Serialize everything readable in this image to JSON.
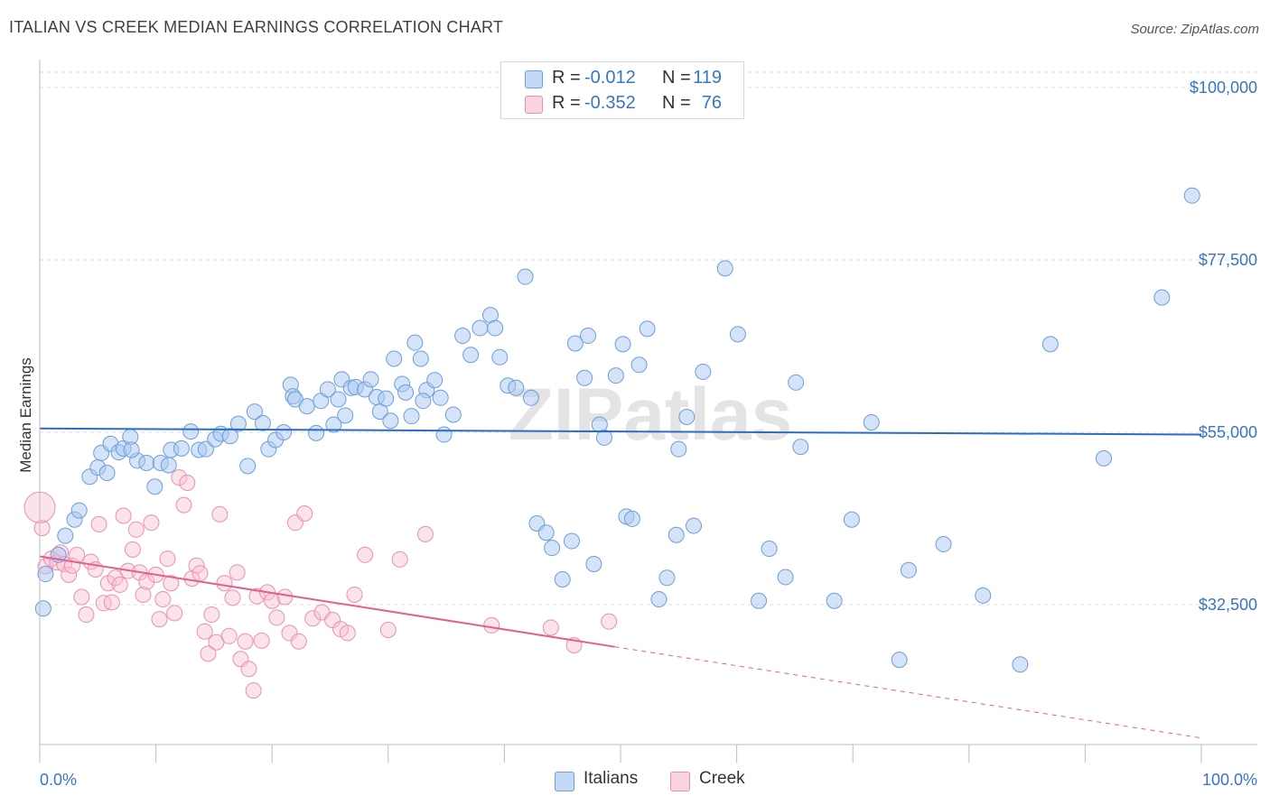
{
  "title": "ITALIAN VS CREEK MEDIAN EARNINGS CORRELATION CHART",
  "source": "Source: ZipAtlas.com",
  "watermark": "ZIPatlas",
  "legend": {
    "rows": [
      {
        "r_label": "R =",
        "r_value": "-0.012",
        "n_label": "N =",
        "n_value": "119",
        "color": "#6fa3e0"
      },
      {
        "r_label": "R =",
        "r_value": "-0.352",
        "n_label": "N =",
        "n_value": "76",
        "color": "#f092b3"
      }
    ]
  },
  "bottom_legend": {
    "italians": "Italians",
    "creek": "Creek"
  },
  "colors": {
    "blue_fill": "#a9c8ef",
    "blue_stroke": "#6c9fdc",
    "blue_line": "#2b6cc7",
    "pink_fill": "#f6c1d3",
    "pink_stroke": "#ec8fb1",
    "pink_line": "#e2608f",
    "grid": "#dcdcdc",
    "tick_text": "#3a74c4"
  },
  "chart_data": {
    "type": "scatter",
    "title": "ITALIAN VS CREEK MEDIAN EARNINGS CORRELATION CHART",
    "xlabel": "",
    "ylabel": "Median Earnings",
    "x_tick_labels": [
      "0.0%",
      "100.0%"
    ],
    "y_tick_labels": [
      "$32,500",
      "$55,000",
      "$77,500",
      "$100,000"
    ],
    "y_ticks": [
      32500,
      55000,
      77500,
      100000
    ],
    "xlim": [
      0,
      100
    ],
    "ylim": [
      12000,
      102000
    ],
    "grid": true,
    "legend_position": "top-center",
    "series": [
      {
        "name": "Italians",
        "r": -0.012,
        "n": 119,
        "trend": {
          "x0": 0,
          "y0": 55500,
          "x1": 100,
          "y1": 54700
        },
        "points": [
          [
            0.3,
            32000
          ],
          [
            0.5,
            36500
          ],
          [
            1.6,
            39000
          ],
          [
            2.2,
            41500
          ],
          [
            3.0,
            43600
          ],
          [
            3.4,
            44800
          ],
          [
            4.3,
            49200
          ],
          [
            5.0,
            50400
          ],
          [
            5.3,
            52300
          ],
          [
            5.8,
            49700
          ],
          [
            6.1,
            53500
          ],
          [
            6.8,
            52400
          ],
          [
            7.2,
            52900
          ],
          [
            7.8,
            54400
          ],
          [
            8.4,
            51300
          ],
          [
            9.2,
            51000
          ],
          [
            9.9,
            47900
          ],
          [
            10.4,
            51000
          ],
          [
            11.1,
            50700
          ],
          [
            11.3,
            52700
          ],
          [
            12.2,
            52900
          ],
          [
            13.0,
            55100
          ],
          [
            13.7,
            52700
          ],
          [
            14.3,
            52800
          ],
          [
            15.1,
            54100
          ],
          [
            15.6,
            54800
          ],
          [
            16.4,
            54500
          ],
          [
            17.1,
            56100
          ],
          [
            17.9,
            50600
          ],
          [
            18.5,
            57700
          ],
          [
            19.2,
            56200
          ],
          [
            19.7,
            52800
          ],
          [
            20.3,
            54000
          ],
          [
            21.0,
            55000
          ],
          [
            21.6,
            61200
          ],
          [
            21.8,
            59700
          ],
          [
            22.0,
            59300
          ],
          [
            23.0,
            58400
          ],
          [
            23.8,
            54900
          ],
          [
            24.2,
            59100
          ],
          [
            24.8,
            60600
          ],
          [
            25.3,
            56000
          ],
          [
            25.7,
            59300
          ],
          [
            26.0,
            61900
          ],
          [
            26.3,
            57200
          ],
          [
            26.8,
            60800
          ],
          [
            27.2,
            60900
          ],
          [
            28.0,
            60600
          ],
          [
            28.5,
            61900
          ],
          [
            29.0,
            59600
          ],
          [
            29.3,
            57700
          ],
          [
            29.8,
            59400
          ],
          [
            30.2,
            56500
          ],
          [
            30.5,
            64600
          ],
          [
            31.2,
            61300
          ],
          [
            31.5,
            60200
          ],
          [
            32.0,
            57100
          ],
          [
            32.3,
            66700
          ],
          [
            32.8,
            64600
          ],
          [
            33.3,
            60500
          ],
          [
            34.0,
            61800
          ],
          [
            34.5,
            59500
          ],
          [
            34.8,
            54700
          ],
          [
            35.6,
            57300
          ],
          [
            36.4,
            67600
          ],
          [
            37.1,
            65100
          ],
          [
            37.9,
            68600
          ],
          [
            38.8,
            70300
          ],
          [
            39.2,
            68600
          ],
          [
            39.6,
            64800
          ],
          [
            40.3,
            61100
          ],
          [
            41.0,
            60800
          ],
          [
            41.8,
            75300
          ],
          [
            42.3,
            59500
          ],
          [
            42.8,
            43100
          ],
          [
            43.6,
            41900
          ],
          [
            44.1,
            39900
          ],
          [
            45.0,
            35800
          ],
          [
            45.8,
            40800
          ],
          [
            46.1,
            66600
          ],
          [
            46.9,
            62100
          ],
          [
            47.2,
            67600
          ],
          [
            47.7,
            37800
          ],
          [
            48.2,
            56000
          ],
          [
            48.6,
            54300
          ],
          [
            49.6,
            62400
          ],
          [
            50.2,
            66500
          ],
          [
            50.5,
            44000
          ],
          [
            51.0,
            43700
          ],
          [
            51.6,
            63800
          ],
          [
            52.3,
            68500
          ],
          [
            53.3,
            33200
          ],
          [
            54.0,
            36000
          ],
          [
            54.8,
            41600
          ],
          [
            55.0,
            52800
          ],
          [
            55.7,
            57000
          ],
          [
            56.3,
            42800
          ],
          [
            57.1,
            62900
          ],
          [
            59.0,
            76400
          ],
          [
            60.1,
            67800
          ],
          [
            61.9,
            33000
          ],
          [
            62.8,
            39800
          ],
          [
            64.2,
            36100
          ],
          [
            65.1,
            61500
          ],
          [
            65.5,
            53100
          ],
          [
            68.4,
            33000
          ],
          [
            69.9,
            43600
          ],
          [
            71.6,
            56300
          ],
          [
            74.0,
            25300
          ],
          [
            74.8,
            37000
          ],
          [
            77.8,
            40400
          ],
          [
            81.2,
            33700
          ],
          [
            84.4,
            24700
          ],
          [
            87.0,
            66500
          ],
          [
            91.6,
            51600
          ],
          [
            96.6,
            72600
          ],
          [
            99.2,
            85900
          ],
          [
            7.9,
            52700
          ],
          [
            33.0,
            59100
          ]
        ]
      },
      {
        "name": "Creek",
        "r": -0.352,
        "n": 76,
        "trend": {
          "x0": 0,
          "y0": 38800,
          "x1": 49.5,
          "y1": 27000,
          "dash_x1": 100,
          "dash_y1": 15100
        },
        "points": [
          [
            0.2,
            42500
          ],
          [
            0.5,
            37500
          ],
          [
            1.0,
            38500
          ],
          [
            1.5,
            38000
          ],
          [
            1.8,
            39300
          ],
          [
            2.1,
            37800
          ],
          [
            2.5,
            36400
          ],
          [
            2.8,
            37600
          ],
          [
            3.2,
            39000
          ],
          [
            3.6,
            33500
          ],
          [
            4.0,
            31200
          ],
          [
            4.4,
            38100
          ],
          [
            4.8,
            37100
          ],
          [
            5.1,
            43000
          ],
          [
            5.5,
            32700
          ],
          [
            5.9,
            35300
          ],
          [
            6.2,
            32800
          ],
          [
            6.5,
            36000
          ],
          [
            6.9,
            35100
          ],
          [
            7.2,
            44100
          ],
          [
            7.6,
            36900
          ],
          [
            8.0,
            39700
          ],
          [
            8.3,
            42300
          ],
          [
            8.6,
            36700
          ],
          [
            8.9,
            33800
          ],
          [
            9.2,
            35500
          ],
          [
            9.6,
            43200
          ],
          [
            10.0,
            36400
          ],
          [
            10.3,
            30600
          ],
          [
            10.6,
            33200
          ],
          [
            11.0,
            38500
          ],
          [
            11.3,
            35300
          ],
          [
            11.6,
            31400
          ],
          [
            12.0,
            49100
          ],
          [
            12.4,
            45500
          ],
          [
            12.7,
            48400
          ],
          [
            13.1,
            35900
          ],
          [
            13.5,
            37600
          ],
          [
            13.8,
            36600
          ],
          [
            14.2,
            29000
          ],
          [
            14.5,
            26100
          ],
          [
            14.8,
            31200
          ],
          [
            15.2,
            27600
          ],
          [
            15.5,
            44300
          ],
          [
            15.9,
            35300
          ],
          [
            16.3,
            28400
          ],
          [
            16.6,
            33400
          ],
          [
            17.0,
            36700
          ],
          [
            17.3,
            25400
          ],
          [
            17.7,
            27700
          ],
          [
            18.0,
            24100
          ],
          [
            18.4,
            21300
          ],
          [
            18.7,
            33600
          ],
          [
            19.1,
            27800
          ],
          [
            19.6,
            34100
          ],
          [
            20.0,
            33000
          ],
          [
            20.4,
            30800
          ],
          [
            21.1,
            33500
          ],
          [
            21.5,
            28800
          ],
          [
            22.0,
            43200
          ],
          [
            22.3,
            27700
          ],
          [
            22.8,
            44400
          ],
          [
            23.5,
            30700
          ],
          [
            24.3,
            31500
          ],
          [
            25.2,
            30500
          ],
          [
            25.9,
            29300
          ],
          [
            26.5,
            28800
          ],
          [
            27.1,
            33800
          ],
          [
            28.0,
            39000
          ],
          [
            30.0,
            29200
          ],
          [
            31.0,
            38400
          ],
          [
            33.2,
            41700
          ],
          [
            38.9,
            29800
          ],
          [
            44.0,
            29500
          ],
          [
            46.0,
            27200
          ],
          [
            49.0,
            30300
          ]
        ]
      }
    ]
  }
}
